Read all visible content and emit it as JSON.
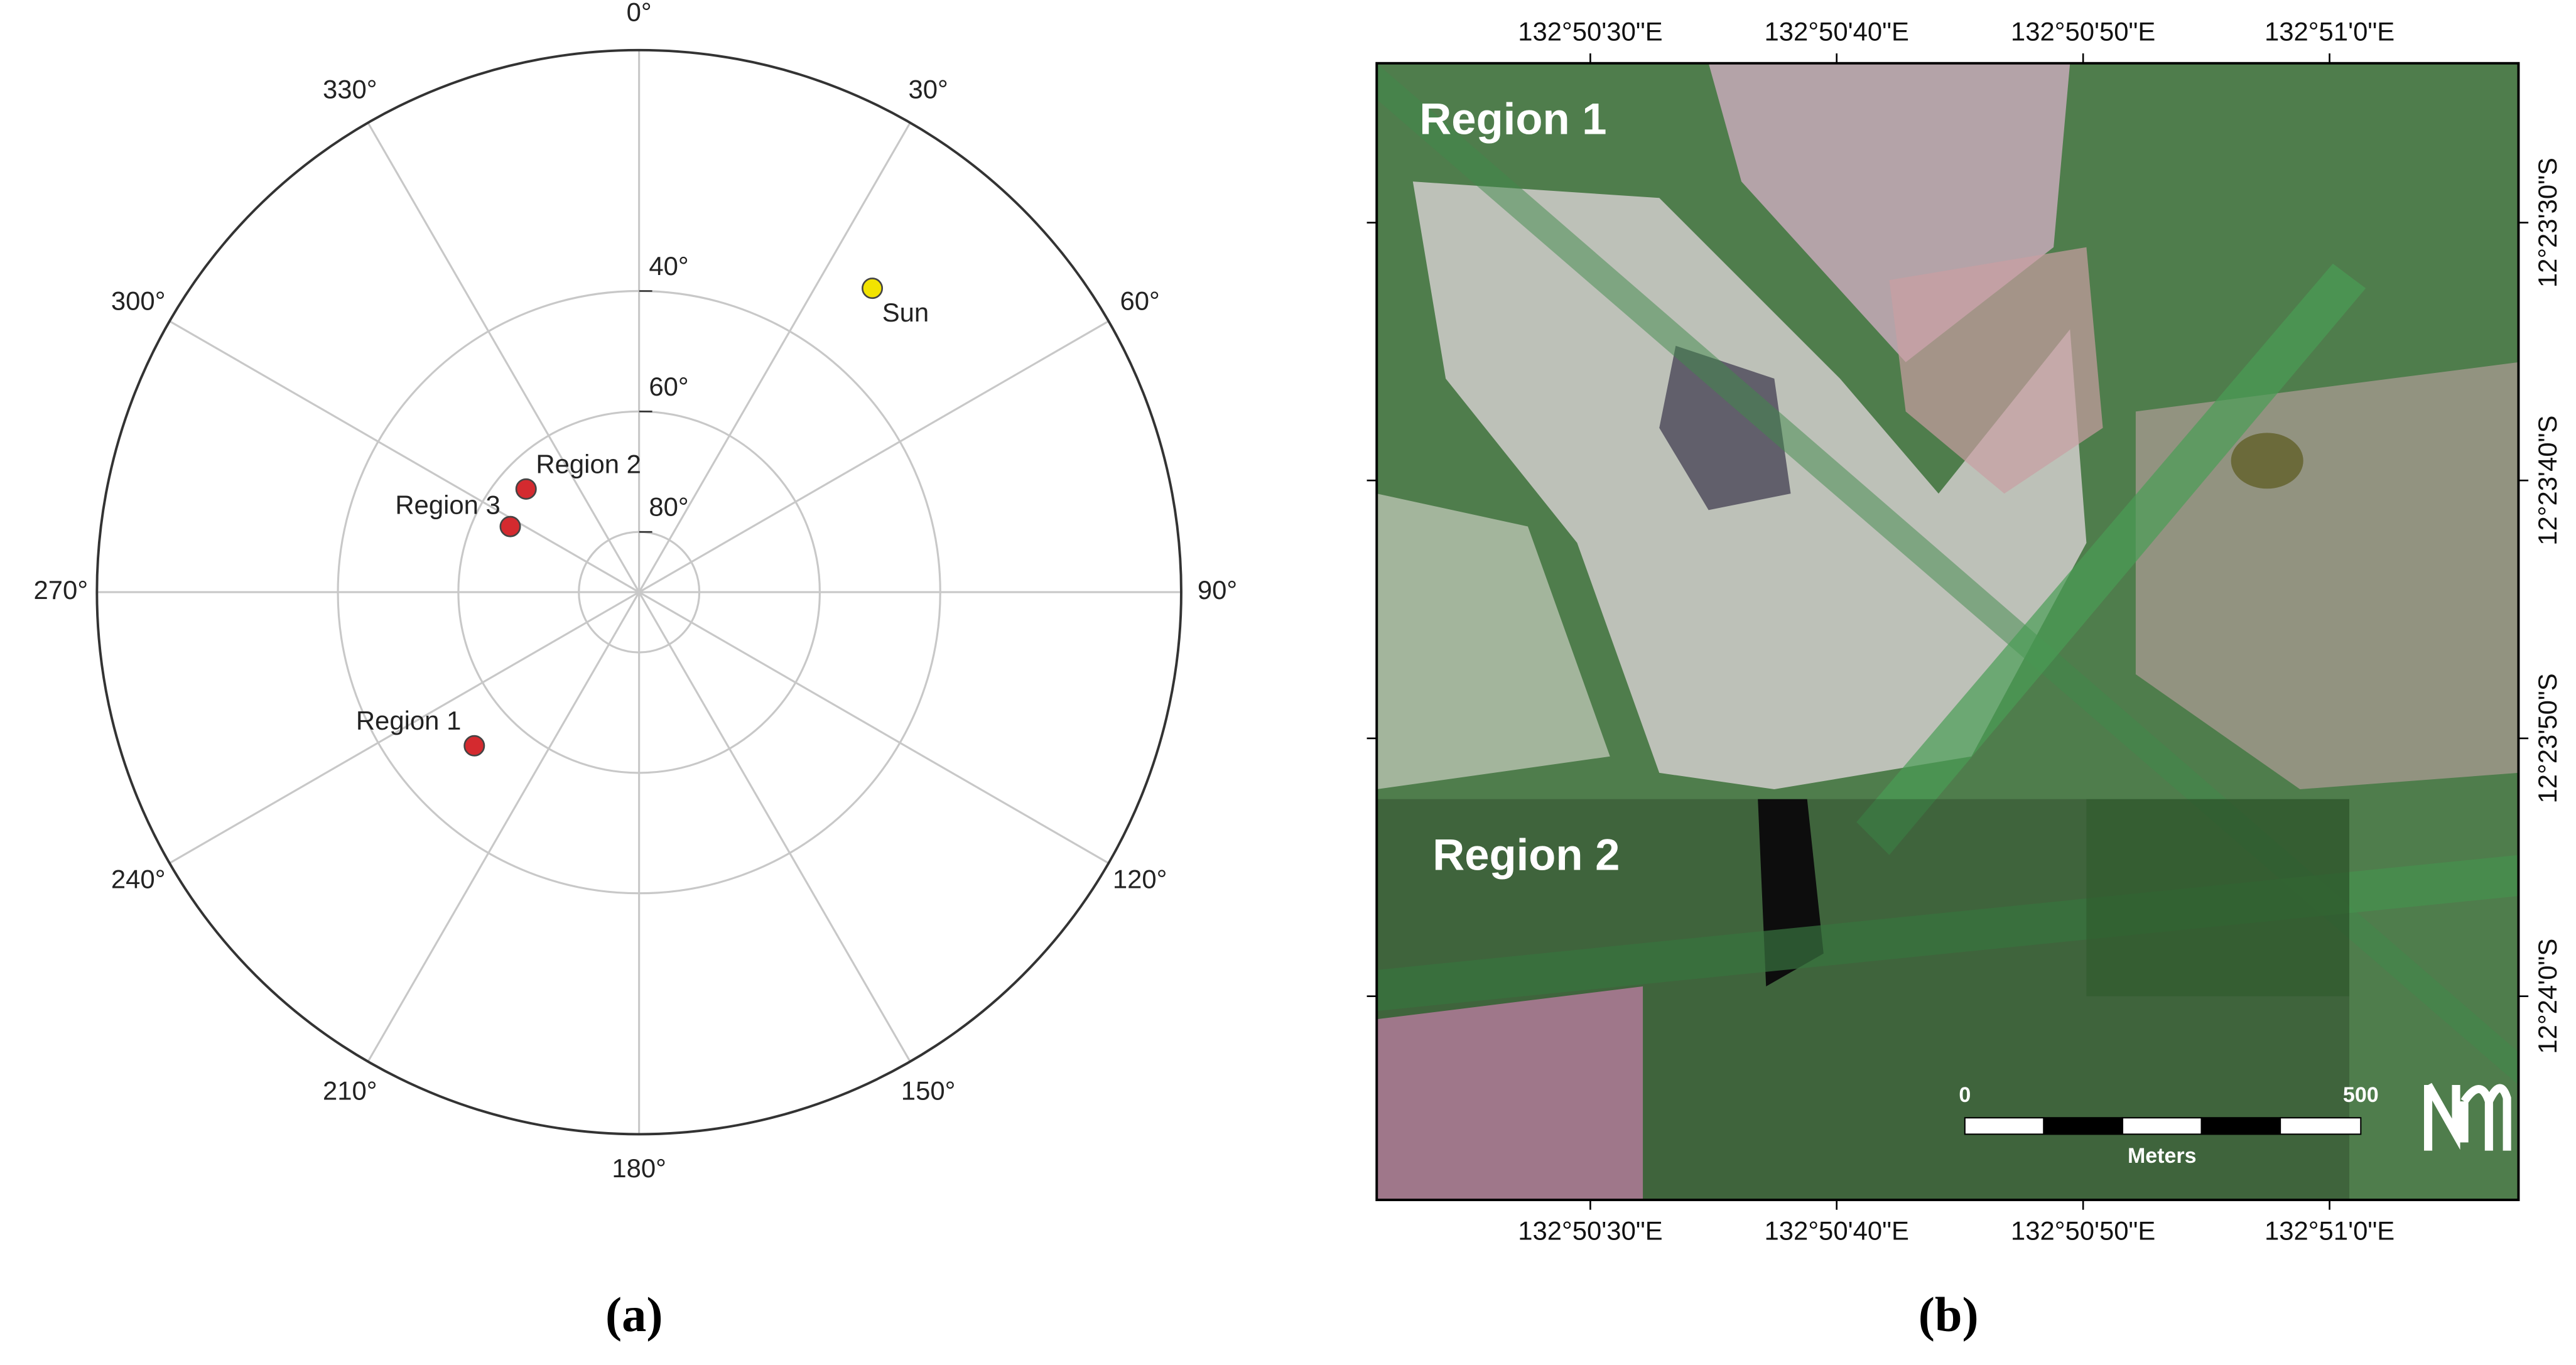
{
  "chart_data": {
    "type": "polar",
    "theta_ticks": [
      {
        "value": 0,
        "label": "0°"
      },
      {
        "value": 30,
        "label": "30°"
      },
      {
        "value": 60,
        "label": "60°"
      },
      {
        "value": 90,
        "label": "90°"
      },
      {
        "value": 120,
        "label": "120°"
      },
      {
        "value": 150,
        "label": "150°"
      },
      {
        "value": 180,
        "label": "180°"
      },
      {
        "value": 210,
        "label": "210°"
      },
      {
        "value": 240,
        "label": "240°"
      },
      {
        "value": 270,
        "label": "270°"
      },
      {
        "value": 300,
        "label": "300°"
      },
      {
        "value": 330,
        "label": "330°"
      }
    ],
    "rlim": [
      90,
      0
    ],
    "rticks": [
      {
        "value": 40,
        "label": "40°"
      },
      {
        "value": 60,
        "label": "60°"
      },
      {
        "value": 80,
        "label": "80°"
      }
    ],
    "grid": true,
    "series": [
      {
        "name": "Sun",
        "color": "#f2e300",
        "theta": [
          37.5
        ],
        "r": [
          26.4
        ]
      },
      {
        "name": "Region 2",
        "color": "#d42a2f",
        "theta": [
          312.4
        ],
        "r": [
          64.6
        ]
      },
      {
        "name": "Region 3",
        "color": "#d42a2f",
        "theta": [
          297
        ],
        "r": [
          66
        ]
      },
      {
        "name": "Region 1",
        "color": "#d42a2f",
        "theta": [
          227
        ],
        "r": [
          52.6
        ]
      }
    ],
    "caption": "(a)"
  },
  "map": {
    "xlim": [
      132.839259,
      132.85213
    ],
    "xticks": [
      {
        "value": 132.841667,
        "label": "132°50'30\"E"
      },
      {
        "value": 132.844444,
        "label": "132°50'40\"E"
      },
      {
        "value": 132.847222,
        "label": "132°50'50\"E"
      },
      {
        "value": 132.85,
        "label": "132°51'0\"E"
      }
    ],
    "ylim": [
      -12.38995,
      -12.402194
    ],
    "yticks": [
      {
        "value": -12.391667,
        "label": "12°23'30\"S"
      },
      {
        "value": -12.394444,
        "label": "12°23'40\"S"
      },
      {
        "value": -12.397222,
        "label": "12°23'50\"S"
      },
      {
        "value": -12.4,
        "label": "12°24'0\"S"
      }
    ],
    "regions": [
      "Region 1",
      "Region 2"
    ],
    "scale_bar": {
      "start": "0",
      "end": "500",
      "unit": "Meters"
    },
    "caption": "(b)"
  }
}
